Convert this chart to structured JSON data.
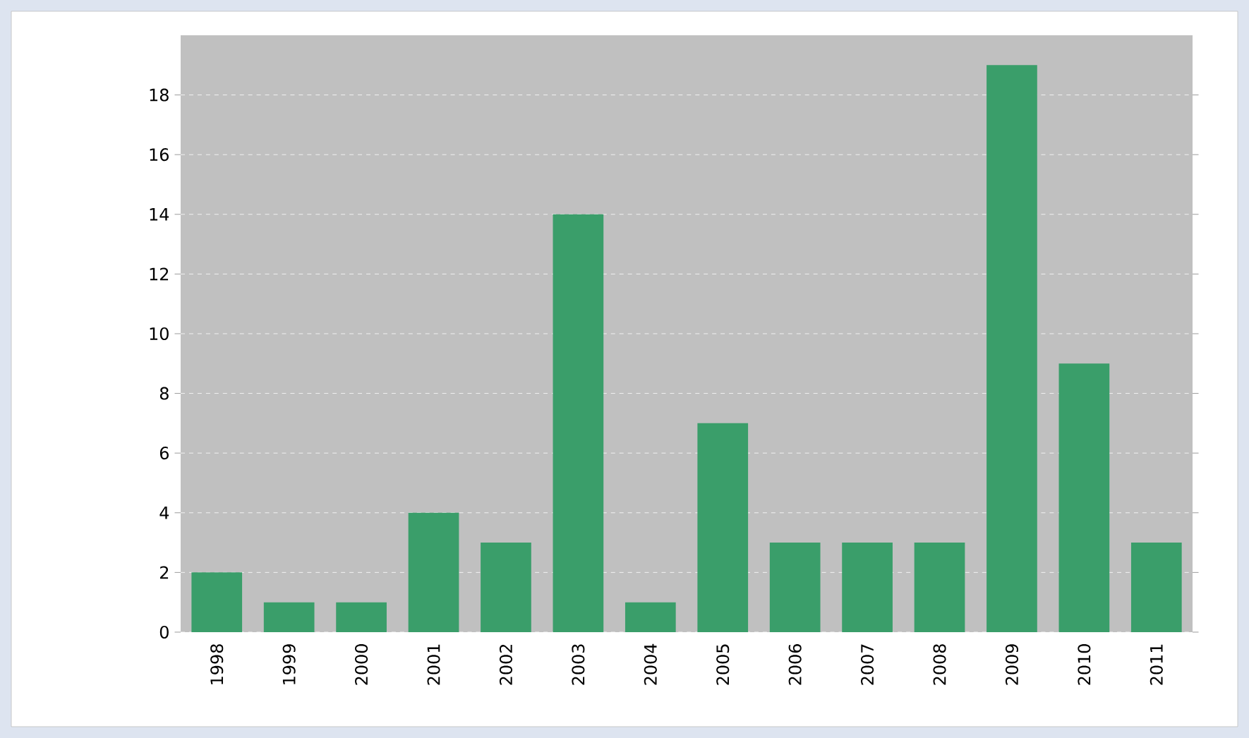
{
  "chart_data": {
    "type": "bar",
    "categories": [
      "1998",
      "1999",
      "2000",
      "2001",
      "2002",
      "2003",
      "2004",
      "2005",
      "2006",
      "2007",
      "2008",
      "2009",
      "2010",
      "2011"
    ],
    "values": [
      2,
      1,
      1,
      4,
      3,
      14,
      1,
      7,
      3,
      3,
      3,
      19,
      9,
      3
    ],
    "color": "#3a9e6a",
    "ylim": [
      0,
      20
    ],
    "yticks": [
      0,
      2,
      4,
      6,
      8,
      10,
      12,
      14,
      16,
      18
    ],
    "grid": "y"
  }
}
